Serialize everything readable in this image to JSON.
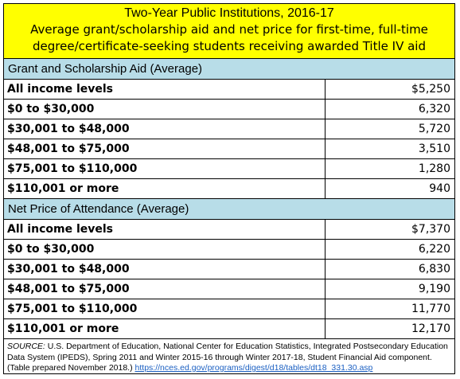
{
  "header": {
    "title": "Two-Year Public Institutions, 2016-17",
    "subtitle_line1": "Average grant/scholarship aid and net price for first-time, full-time",
    "subtitle_line2": "degree/certificate-seeking students receiving awarded Title IV aid"
  },
  "sections": [
    {
      "title": "Grant and Scholarship Aid (Average)",
      "rows": [
        {
          "label": "All income levels",
          "value": "$5,250"
        },
        {
          "label": "$0 to $30,000",
          "value": "6,320"
        },
        {
          "label": "$30,001 to $48,000",
          "value": "5,720"
        },
        {
          "label": "$48,001 to $75,000",
          "value": "3,510"
        },
        {
          "label": "$75,001 to $110,000",
          "value": "1,280"
        },
        {
          "label": "$110,001 or more",
          "value": "940"
        }
      ]
    },
    {
      "title": "Net Price of Attendance (Average)",
      "rows": [
        {
          "label": "All income levels",
          "value": "$7,370"
        },
        {
          "label": "$0 to $30,000",
          "value": "6,220"
        },
        {
          "label": "$30,001 to $48,000",
          "value": "6,830"
        },
        {
          "label": "$48,001 to $75,000",
          "value": "9,190"
        },
        {
          "label": "$75,001 to $110,000",
          "value": "11,770"
        },
        {
          "label": "$110,001 or more",
          "value": "12,170"
        }
      ]
    }
  ],
  "footnote": {
    "source_label": "SOURCE:",
    "text": " U.S. Department of Education, National Center for Education Statistics, Integrated Postsecondary Education Data System (IPEDS), Spring 2011 and Winter 2015-16 through Winter 2017-18, Student Financial Aid component. (Table prepared November 2018.) ",
    "link": "https://nces.ed.gov/programs/digest/d18/tables/dt18_331.30.asp"
  }
}
